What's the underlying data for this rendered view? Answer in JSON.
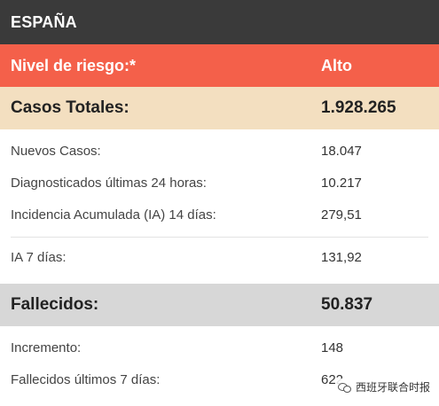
{
  "header": {
    "title": "ESPAÑA"
  },
  "risk": {
    "label": "Nivel de riesgo:*",
    "value": "Alto"
  },
  "totals": {
    "label": "Casos Totales:",
    "value": "1.928.265"
  },
  "cases_rows": [
    {
      "label": "Nuevos Casos:",
      "value": "18.047"
    },
    {
      "label": "Diagnosticados últimas 24 horas:",
      "value": "10.217"
    },
    {
      "label": "Incidencia Acumulada (IA) 14 días:",
      "value": "279,51"
    }
  ],
  "ia7": {
    "label": "IA 7 días:",
    "value": "131,92"
  },
  "deaths": {
    "label": "Fallecidos:",
    "value": "50.837"
  },
  "deaths_rows": [
    {
      "label": "Incremento:",
      "value": "148"
    },
    {
      "label": "Fallecidos últimos 7 días:",
      "value": "622"
    }
  ],
  "watermark": {
    "text": "西班牙联合时报"
  }
}
